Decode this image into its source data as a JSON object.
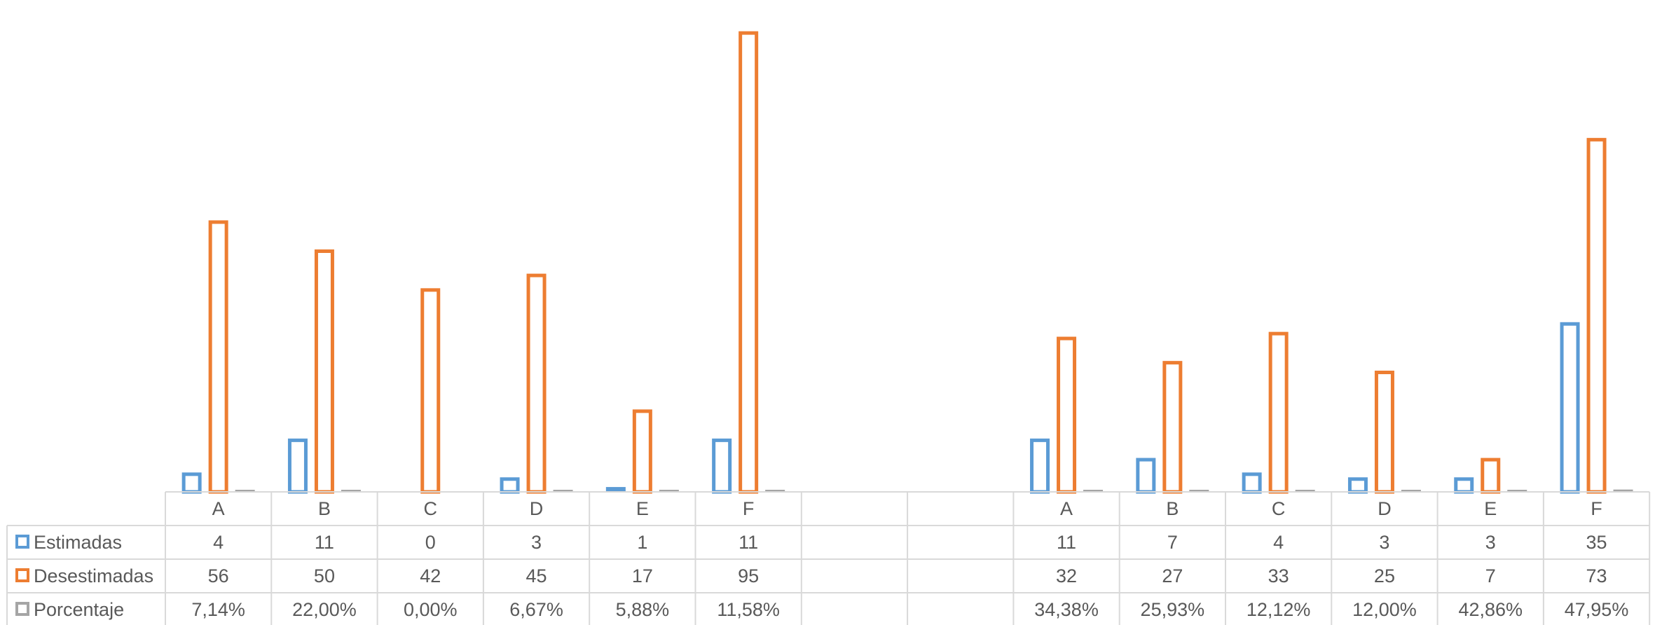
{
  "chart_data": {
    "type": "bar",
    "title": "",
    "xlabel": "",
    "ylabel": "",
    "ylim": [
      0,
      100
    ],
    "groups": [
      {
        "categories": [
          "A",
          "B",
          "C",
          "D",
          "E",
          "F"
        ]
      },
      {
        "categories": [
          "A",
          "B",
          "C",
          "D",
          "E",
          "F"
        ]
      }
    ],
    "series": [
      {
        "name": "Estimadas",
        "color": "#5B9BD5",
        "values": [
          [
            4,
            11,
            0,
            3,
            1,
            11
          ],
          [
            11,
            7,
            4,
            3,
            3,
            35
          ]
        ],
        "labels": [
          [
            "4",
            "11",
            "0",
            "3",
            "1",
            "11"
          ],
          [
            "11",
            "7",
            "4",
            "3",
            "3",
            "35"
          ]
        ]
      },
      {
        "name": "Desestimadas",
        "color": "#ED7D31",
        "values": [
          [
            56,
            50,
            42,
            45,
            17,
            95
          ],
          [
            32,
            27,
            33,
            25,
            7,
            73
          ]
        ],
        "labels": [
          [
            "56",
            "50",
            "42",
            "45",
            "17",
            "95"
          ],
          [
            "32",
            "27",
            "33",
            "25",
            "7",
            "73"
          ]
        ]
      },
      {
        "name": "Porcentaje",
        "color": "#A5A5A5",
        "values": [
          [
            0.0714,
            0.22,
            0.0,
            0.0667,
            0.0588,
            0.1158
          ],
          [
            0.3438,
            0.2593,
            0.1212,
            0.12,
            0.4286,
            0.4795
          ]
        ],
        "labels": [
          [
            "7,14%",
            "22,00%",
            "0,00%",
            "6,67%",
            "5,88%",
            "11,58%"
          ],
          [
            "34,38%",
            "25,93%",
            "12,12%",
            "12,00%",
            "42,86%",
            "47,95%"
          ]
        ]
      }
    ],
    "data_table": true,
    "legend": "data-table-left",
    "grid": false
  }
}
